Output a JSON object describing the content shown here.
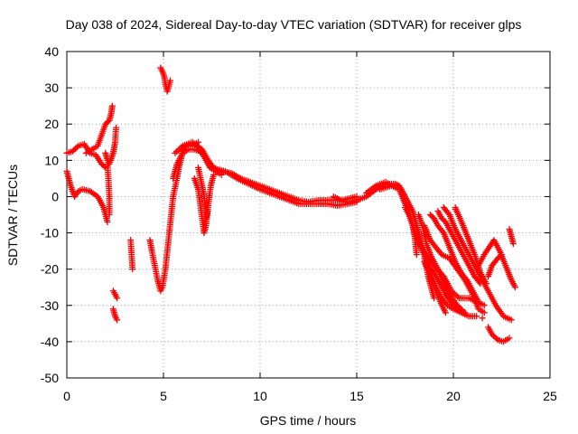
{
  "chart_data": {
    "type": "scatter",
    "title": "Day 038 of 2024, Sidereal Day-to-day VTEC variation (SDTVAR) for receiver glps",
    "xlabel": "GPS time / hours",
    "ylabel": "SDTVAR / TECUs",
    "xlim": [
      0,
      25
    ],
    "ylim": [
      -50,
      40
    ],
    "xticks": [
      "0",
      "5",
      "10",
      "15",
      "20",
      "25"
    ],
    "yticks": [
      "40",
      "30",
      "20",
      "10",
      "0",
      "-10",
      "-20",
      "-30",
      "-40",
      "-50"
    ],
    "grid": true,
    "marker": "+",
    "color": "#ff0000",
    "tracks": [
      [
        [
          0,
          12
        ],
        [
          0.3,
          12.5
        ],
        [
          0.6,
          14
        ],
        [
          0.9,
          14.5
        ],
        [
          1.2,
          12
        ],
        [
          1.5,
          11.5
        ],
        [
          1.8,
          9
        ],
        [
          2.0,
          8
        ]
      ],
      [
        [
          0,
          7
        ],
        [
          0.2,
          3
        ],
        [
          0.4,
          0
        ],
        [
          0.6,
          1.5
        ],
        [
          0.8,
          2
        ],
        [
          1.2,
          1.5
        ],
        [
          1.6,
          0
        ],
        [
          1.9,
          -3
        ],
        [
          2.1,
          -7
        ]
      ],
      [
        [
          1.0,
          12
        ],
        [
          1.3,
          13
        ],
        [
          1.6,
          14
        ],
        [
          1.8,
          17
        ],
        [
          2.0,
          20
        ],
        [
          2.2,
          21
        ],
        [
          2.3,
          23
        ],
        [
          2.35,
          25
        ]
      ],
      [
        [
          2.0,
          12
        ],
        [
          2.1,
          10
        ],
        [
          2.2,
          9
        ],
        [
          2.4,
          12
        ],
        [
          2.5,
          15
        ],
        [
          2.55,
          19
        ]
      ],
      [
        [
          2.1,
          9
        ],
        [
          2.15,
          5
        ],
        [
          2.2,
          0
        ],
        [
          2.2,
          -5
        ]
      ],
      [
        [
          2.4,
          -26
        ],
        [
          2.5,
          -27
        ],
        [
          2.6,
          -28
        ]
      ],
      [
        [
          2.4,
          -31
        ],
        [
          2.5,
          -33
        ],
        [
          2.6,
          -34
        ]
      ],
      [
        [
          3.3,
          -12
        ],
        [
          3.35,
          -16
        ],
        [
          3.4,
          -20
        ]
      ],
      [
        [
          4.3,
          -12
        ],
        [
          4.4,
          -15
        ],
        [
          4.55,
          -19
        ],
        [
          4.7,
          -23
        ],
        [
          4.85,
          -26
        ],
        [
          4.95,
          -25
        ],
        [
          5.1,
          -20
        ],
        [
          5.3,
          -10
        ],
        [
          5.5,
          0
        ],
        [
          5.7,
          5
        ],
        [
          5.8,
          8
        ],
        [
          5.9,
          10
        ],
        [
          6.0,
          13
        ],
        [
          6.2,
          14
        ],
        [
          6.5,
          14
        ],
        [
          6.8,
          15
        ]
      ],
      [
        [
          5.5,
          5
        ],
        [
          5.7,
          9
        ],
        [
          6.0,
          12
        ],
        [
          6.3,
          13
        ],
        [
          6.6,
          13
        ],
        [
          6.9,
          12.5
        ],
        [
          7.2,
          11
        ],
        [
          7.5,
          8
        ],
        [
          7.8,
          7.5
        ],
        [
          8.2,
          7
        ],
        [
          8.5,
          6
        ],
        [
          8.8,
          5
        ],
        [
          9.2,
          4
        ],
        [
          9.6,
          3
        ],
        [
          10,
          2
        ],
        [
          10.5,
          1
        ],
        [
          11,
          0
        ],
        [
          11.5,
          -1
        ],
        [
          12,
          -2
        ],
        [
          12.5,
          -2
        ],
        [
          13,
          -2
        ],
        [
          13.5,
          -2
        ],
        [
          14,
          -2.5
        ],
        [
          14.5,
          -2
        ],
        [
          15,
          -1.5
        ]
      ],
      [
        [
          5.6,
          12
        ],
        [
          6,
          14
        ],
        [
          6.5,
          15
        ],
        [
          7,
          13
        ],
        [
          7.3,
          10
        ],
        [
          7.6,
          8
        ],
        [
          8,
          7
        ],
        [
          8.5,
          6.5
        ],
        [
          9,
          5
        ],
        [
          9.5,
          4
        ],
        [
          10,
          3
        ],
        [
          10.5,
          2
        ],
        [
          11,
          1
        ],
        [
          11.5,
          0
        ],
        [
          12,
          -1
        ],
        [
          12.5,
          -1.5
        ],
        [
          13,
          -1
        ],
        [
          13.5,
          -1
        ],
        [
          14,
          -1
        ],
        [
          14.5,
          -1.5
        ],
        [
          15,
          -1
        ]
      ],
      [
        [
          6.7,
          13
        ],
        [
          7.0,
          12
        ],
        [
          7.2,
          10
        ],
        [
          7.4,
          8
        ],
        [
          7.7,
          7
        ],
        [
          8,
          6
        ]
      ],
      [
        [
          6.6,
          5
        ],
        [
          6.8,
          2
        ],
        [
          6.9,
          -2
        ],
        [
          7.0,
          -6
        ],
        [
          7.1,
          -10
        ],
        [
          7.2,
          -8
        ],
        [
          7.3,
          -3
        ],
        [
          7.45,
          3
        ],
        [
          7.6,
          6
        ]
      ],
      [
        [
          6.8,
          8
        ],
        [
          7.0,
          3
        ],
        [
          7.1,
          0
        ],
        [
          7.2,
          -6
        ],
        [
          7.3,
          -4
        ]
      ],
      [
        [
          4.85,
          35.5
        ],
        [
          4.95,
          34.5
        ],
        [
          5.05,
          33
        ],
        [
          5.1,
          31
        ],
        [
          5.2,
          29
        ],
        [
          5.35,
          32
        ]
      ],
      [
        [
          13.8,
          0
        ],
        [
          14.2,
          -1
        ],
        [
          14.6,
          -0.5
        ],
        [
          15,
          0
        ]
      ],
      [
        [
          15,
          -1
        ],
        [
          15.5,
          0
        ],
        [
          16,
          2
        ],
        [
          16.5,
          3.5
        ],
        [
          17,
          3.5
        ],
        [
          17.3,
          2
        ],
        [
          17.6,
          -1
        ],
        [
          17.9,
          -4
        ],
        [
          18.1,
          -8
        ],
        [
          18.3,
          -12
        ],
        [
          18.6,
          -17
        ],
        [
          18.8,
          -22
        ],
        [
          19.1,
          -26
        ],
        [
          19.4,
          -30
        ],
        [
          19.6,
          -32
        ]
      ],
      [
        [
          15.5,
          1
        ],
        [
          16,
          3
        ],
        [
          16.5,
          4
        ],
        [
          16.8,
          3
        ],
        [
          17.0,
          3.5
        ],
        [
          17.2,
          3
        ],
        [
          17.5,
          0
        ],
        [
          17.7,
          -4
        ],
        [
          17.9,
          -8
        ],
        [
          18.1,
          -11
        ],
        [
          18.4,
          -15
        ],
        [
          18.7,
          -19
        ],
        [
          19.0,
          -21
        ],
        [
          19.3,
          -24
        ],
        [
          19.6,
          -27
        ],
        [
          20.0,
          -30
        ],
        [
          20.3,
          -31
        ]
      ],
      [
        [
          16.2,
          2
        ],
        [
          16.8,
          3
        ],
        [
          17.2,
          2
        ],
        [
          17.5,
          -2
        ],
        [
          17.8,
          -6
        ],
        [
          18,
          -10
        ],
        [
          18.3,
          -13
        ],
        [
          18.6,
          -16
        ],
        [
          19,
          -19
        ],
        [
          19.5,
          -22
        ],
        [
          19.9,
          -26
        ],
        [
          20.3,
          -28
        ],
        [
          20.8,
          -28
        ],
        [
          21.2,
          -29
        ],
        [
          21.6,
          -30
        ]
      ],
      [
        [
          17.5,
          -3
        ],
        [
          17.7,
          -5
        ],
        [
          17.9,
          -8
        ],
        [
          18.0,
          -11
        ],
        [
          18.1,
          -16
        ]
      ],
      [
        [
          18.2,
          -5
        ],
        [
          18.4,
          -8
        ],
        [
          18.6,
          -13
        ],
        [
          18.9,
          -17
        ],
        [
          19.2,
          -20
        ],
        [
          19.5,
          -24
        ],
        [
          19.8,
          -27
        ],
        [
          20.2,
          -30
        ],
        [
          20.6,
          -32
        ]
      ],
      [
        [
          18.5,
          -8
        ],
        [
          18.8,
          -12
        ],
        [
          19.1,
          -14
        ],
        [
          19.4,
          -16
        ],
        [
          19.8,
          -17
        ],
        [
          20.2,
          -20
        ],
        [
          20.6,
          -23
        ],
        [
          21.0,
          -27
        ],
        [
          21.3,
          -31
        ],
        [
          21.6,
          -32
        ]
      ],
      [
        [
          18.5,
          -18
        ],
        [
          18.8,
          -21
        ],
        [
          19.1,
          -25
        ],
        [
          19.4,
          -28
        ],
        [
          19.7,
          -30
        ],
        [
          20,
          -31
        ],
        [
          20.4,
          -32
        ],
        [
          20.8,
          -33
        ],
        [
          21.2,
          -33
        ]
      ],
      [
        [
          18.5,
          -17
        ],
        [
          18.7,
          -22
        ],
        [
          18.9,
          -26
        ],
        [
          19.0,
          -28
        ]
      ],
      [
        [
          18.8,
          -5
        ],
        [
          19.0,
          -6
        ],
        [
          19.2,
          -8
        ],
        [
          19.5,
          -10
        ],
        [
          19.8,
          -14
        ],
        [
          20.1,
          -18
        ],
        [
          20.4,
          -21
        ],
        [
          20.7,
          -23
        ],
        [
          21,
          -26
        ],
        [
          21.3,
          -29
        ]
      ],
      [
        [
          19.2,
          -4
        ],
        [
          19.4,
          -6
        ],
        [
          19.6,
          -7
        ],
        [
          19.9,
          -10
        ],
        [
          20.2,
          -13
        ],
        [
          20.5,
          -16
        ],
        [
          20.8,
          -19
        ],
        [
          21.1,
          -22
        ],
        [
          21.4,
          -24
        ]
      ],
      [
        [
          19.5,
          -3
        ],
        [
          19.8,
          -5
        ],
        [
          20.1,
          -9
        ],
        [
          20.4,
          -12
        ],
        [
          20.7,
          -15
        ],
        [
          21.0,
          -18
        ],
        [
          21.3,
          -21
        ],
        [
          21.6,
          -24
        ],
        [
          21.9,
          -27
        ],
        [
          22.2,
          -30
        ],
        [
          22.6,
          -33
        ],
        [
          23.0,
          -34
        ]
      ],
      [
        [
          20.1,
          -3
        ],
        [
          20.5,
          -8
        ],
        [
          20.8,
          -12
        ],
        [
          21.1,
          -16
        ],
        [
          21.4,
          -21
        ],
        [
          21.7,
          -24
        ]
      ],
      [
        [
          21.2,
          -20
        ],
        [
          21.6,
          -16
        ],
        [
          22.1,
          -12
        ],
        [
          22.4,
          -15
        ],
        [
          22.7,
          -19
        ],
        [
          23.0,
          -23
        ],
        [
          23.2,
          -25
        ]
      ],
      [
        [
          21.8,
          -22
        ],
        [
          22.0,
          -19
        ],
        [
          22.3,
          -17
        ],
        [
          22.5,
          -16
        ]
      ],
      [
        [
          21.8,
          -36
        ],
        [
          22.0,
          -38
        ],
        [
          22.3,
          -39.5
        ],
        [
          22.6,
          -40
        ],
        [
          22.9,
          -39
        ]
      ],
      [
        [
          22.9,
          -9
        ],
        [
          23.0,
          -11
        ],
        [
          23.1,
          -13
        ]
      ]
    ]
  }
}
